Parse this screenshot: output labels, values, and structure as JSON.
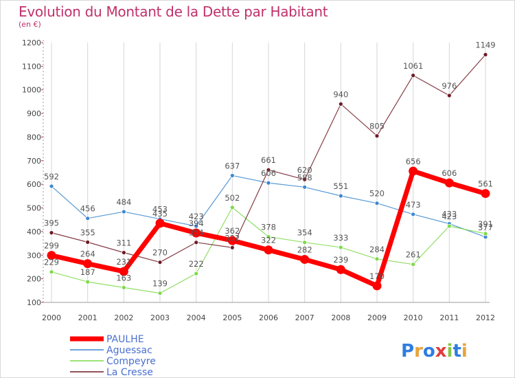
{
  "chart_data": {
    "type": "line",
    "title": "Evolution du Montant de la Dette par Habitant",
    "subtitle": "(en €)",
    "categories": [
      "2000",
      "2001",
      "2002",
      "2003",
      "2004",
      "2005",
      "2006",
      "2007",
      "2008",
      "2009",
      "2010",
      "2011",
      "2012"
    ],
    "ylim": [
      100,
      1200
    ],
    "yticks": [
      100,
      200,
      300,
      400,
      500,
      600,
      700,
      800,
      900,
      1000,
      1100,
      1200
    ],
    "grid": "vertical",
    "legend_position": "bottom-left",
    "series": [
      {
        "name": "PAULHE",
        "color": "#ff0000",
        "values": [
          299,
          264,
          231,
          435,
          394,
          362,
          322,
          282,
          239,
          170,
          656,
          606,
          561
        ]
      },
      {
        "name": "Aguessac",
        "color": "#3b87cf",
        "values": [
          592,
          456,
          484,
          453,
          423,
          637,
          606,
          588,
          551,
          520,
          473,
          433,
          377
        ]
      },
      {
        "name": "Compeyre",
        "color": "#7dd94a",
        "values": [
          229,
          187,
          163,
          139,
          222,
          502,
          378,
          354,
          333,
          284,
          261,
          423,
          391
        ]
      },
      {
        "name": "La Cresse",
        "color": "#6e1a24",
        "values": [
          395,
          355,
          311,
          270,
          354,
          332,
          661,
          620,
          940,
          805,
          1061,
          976,
          1149
        ]
      }
    ]
  },
  "logo": {
    "text": "Proxiti",
    "colors": [
      "#2f7de1",
      "#e8a33a",
      "#2f7de1",
      "#e23c3c",
      "#8ac34a",
      "#2f7de1",
      "#e8a33a"
    ]
  }
}
